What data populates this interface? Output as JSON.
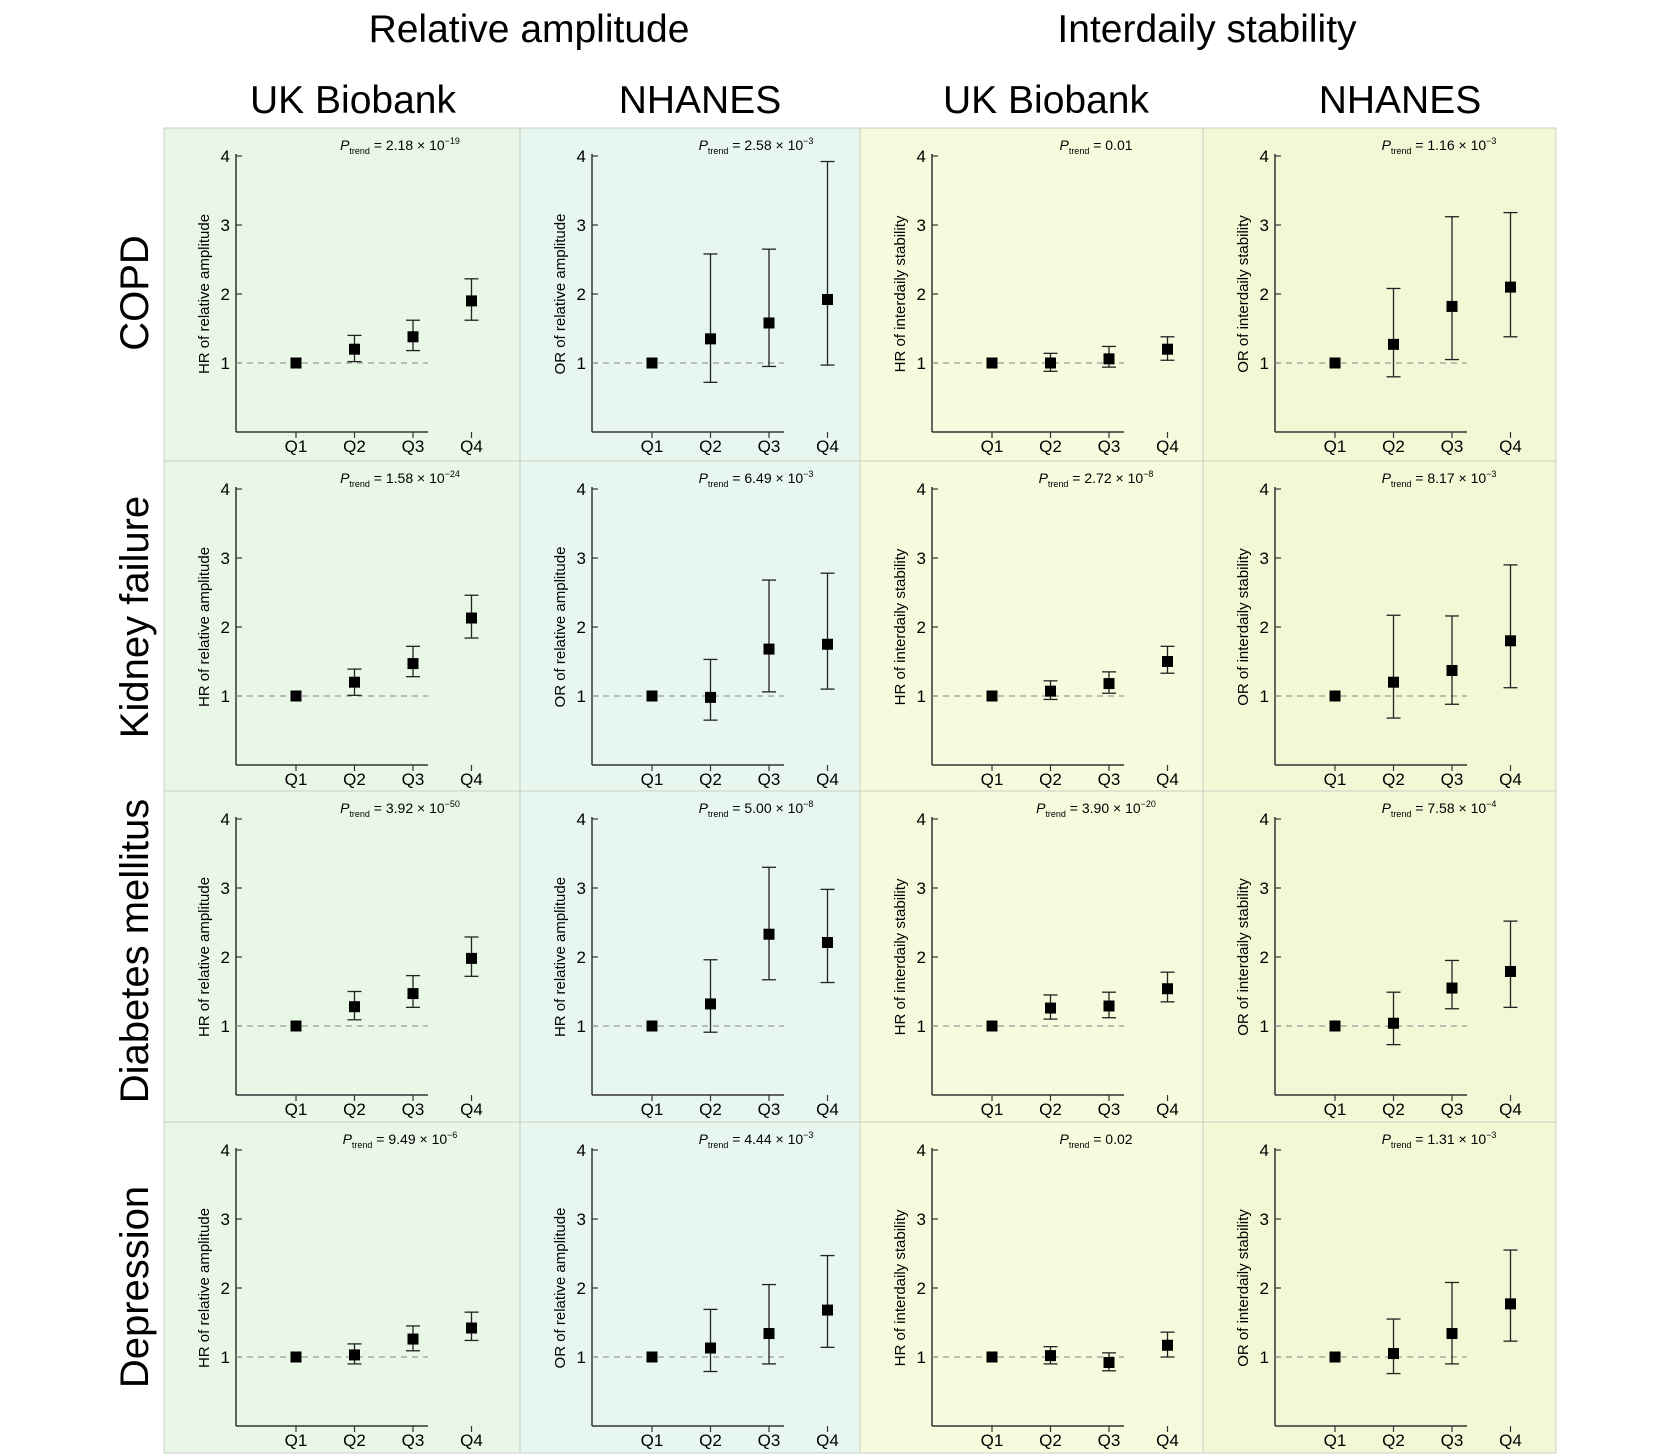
{
  "figure": {
    "column_groups": [
      "Relative amplitude",
      "Interdaily stability"
    ],
    "cohorts": [
      "UK Biobank",
      "NHANES",
      "UK Biobank",
      "NHANES"
    ],
    "row_labels": [
      "COPD",
      "Kidney failure",
      "Diabetes mellitus",
      "Depression"
    ],
    "panel_colors": [
      "#e9f7e7",
      "#e7f7ef",
      "#f6fbdd",
      "#f4f7d6"
    ],
    "point_color": "#000000",
    "reference_line_color": "#9a9a9a"
  },
  "chart_data": [
    {
      "type": "scatter",
      "row": "COPD",
      "column_group": "Relative amplitude",
      "cohort": "UK Biobank",
      "ylabel": "HR of relative amplitude",
      "categories": [
        "Q1",
        "Q2",
        "Q3",
        "Q4"
      ],
      "values": [
        1.0,
        1.2,
        1.38,
        1.9
      ],
      "ci_low": [
        1.0,
        1.02,
        1.18,
        1.62
      ],
      "ci_high": [
        1.0,
        1.4,
        1.62,
        2.22
      ],
      "p_trend": {
        "mantissa": "2.18",
        "exponent": "−19"
      },
      "yticks": [
        1,
        2,
        3,
        4
      ],
      "ylim": [
        0,
        4
      ],
      "reference_y": 1
    },
    {
      "type": "scatter",
      "row": "COPD",
      "column_group": "Relative amplitude",
      "cohort": "NHANES",
      "ylabel": "OR of relative amplitude",
      "categories": [
        "Q1",
        "Q2",
        "Q3",
        "Q4"
      ],
      "values": [
        1.0,
        1.35,
        1.58,
        1.92
      ],
      "ci_low": [
        1.0,
        0.72,
        0.95,
        0.97
      ],
      "ci_high": [
        1.0,
        2.58,
        2.65,
        3.92
      ],
      "p_trend": {
        "mantissa": "2.58",
        "exponent": "−3"
      },
      "yticks": [
        1,
        2,
        3,
        4
      ],
      "ylim": [
        0,
        4
      ],
      "reference_y": 1
    },
    {
      "type": "scatter",
      "row": "COPD",
      "column_group": "Interdaily stability",
      "cohort": "UK Biobank",
      "ylabel": "HR of interdaily stability",
      "categories": [
        "Q1",
        "Q2",
        "Q3",
        "Q4"
      ],
      "values": [
        1.0,
        1.0,
        1.06,
        1.2
      ],
      "ci_low": [
        1.0,
        0.88,
        0.94,
        1.04
      ],
      "ci_high": [
        1.0,
        1.14,
        1.24,
        1.38
      ],
      "p_trend": {
        "mantissa": "0.01",
        "exponent": ""
      },
      "yticks": [
        1,
        2,
        3,
        4
      ],
      "ylim": [
        0,
        4
      ],
      "reference_y": 1
    },
    {
      "type": "scatter",
      "row": "COPD",
      "column_group": "Interdaily stability",
      "cohort": "NHANES",
      "ylabel": "OR of interdaily stability",
      "categories": [
        "Q1",
        "Q2",
        "Q3",
        "Q4"
      ],
      "values": [
        1.0,
        1.27,
        1.82,
        2.1
      ],
      "ci_low": [
        1.0,
        0.8,
        1.05,
        1.38
      ],
      "ci_high": [
        1.0,
        2.08,
        3.12,
        3.18
      ],
      "p_trend": {
        "mantissa": "1.16",
        "exponent": "−3"
      },
      "yticks": [
        1,
        2,
        3,
        4
      ],
      "ylim": [
        0,
        4
      ],
      "reference_y": 1
    },
    {
      "type": "scatter",
      "row": "Kidney failure",
      "column_group": "Relative amplitude",
      "cohort": "UK Biobank",
      "ylabel": "HR of relative amplitude",
      "categories": [
        "Q1",
        "Q2",
        "Q3",
        "Q4"
      ],
      "values": [
        1.0,
        1.2,
        1.47,
        2.13
      ],
      "ci_low": [
        1.0,
        1.01,
        1.28,
        1.84
      ],
      "ci_high": [
        1.0,
        1.39,
        1.72,
        2.46
      ],
      "p_trend": {
        "mantissa": "1.58",
        "exponent": "−24"
      },
      "yticks": [
        1,
        2,
        3,
        4
      ],
      "ylim": [
        0,
        4
      ],
      "reference_y": 1
    },
    {
      "type": "scatter",
      "row": "Kidney failure",
      "column_group": "Relative amplitude",
      "cohort": "NHANES",
      "ylabel": "OR of relative amplitude",
      "categories": [
        "Q1",
        "Q2",
        "Q3",
        "Q4"
      ],
      "values": [
        1.0,
        0.98,
        1.68,
        1.75
      ],
      "ci_low": [
        1.0,
        0.65,
        1.06,
        1.1
      ],
      "ci_high": [
        1.0,
        1.53,
        2.68,
        2.78
      ],
      "p_trend": {
        "mantissa": "6.49",
        "exponent": "−3"
      },
      "yticks": [
        1,
        2,
        3,
        4
      ],
      "ylim": [
        0,
        4
      ],
      "reference_y": 1
    },
    {
      "type": "scatter",
      "row": "Kidney failure",
      "column_group": "Interdaily stability",
      "cohort": "UK Biobank",
      "ylabel": "HR of interdaily stability",
      "categories": [
        "Q1",
        "Q2",
        "Q3",
        "Q4"
      ],
      "values": [
        1.0,
        1.07,
        1.18,
        1.5
      ],
      "ci_low": [
        1.0,
        0.95,
        1.04,
        1.33
      ],
      "ci_high": [
        1.0,
        1.22,
        1.35,
        1.72
      ],
      "p_trend": {
        "mantissa": "2.72",
        "exponent": "−8"
      },
      "yticks": [
        1,
        2,
        3,
        4
      ],
      "ylim": [
        0,
        4
      ],
      "reference_y": 1
    },
    {
      "type": "scatter",
      "row": "Kidney failure",
      "column_group": "Interdaily stability",
      "cohort": "NHANES",
      "ylabel": "OR of interdaily stability",
      "categories": [
        "Q1",
        "Q2",
        "Q3",
        "Q4"
      ],
      "values": [
        1.0,
        1.2,
        1.37,
        1.8
      ],
      "ci_low": [
        1.0,
        0.68,
        0.88,
        1.12
      ],
      "ci_high": [
        1.0,
        2.17,
        2.16,
        2.9
      ],
      "p_trend": {
        "mantissa": "8.17",
        "exponent": "−3"
      },
      "yticks": [
        1,
        2,
        3,
        4
      ],
      "ylim": [
        0,
        4
      ],
      "reference_y": 1
    },
    {
      "type": "scatter",
      "row": "Diabetes mellitus",
      "column_group": "Relative amplitude",
      "cohort": "UK Biobank",
      "ylabel": "HR of relative amplitude",
      "categories": [
        "Q1",
        "Q2",
        "Q3",
        "Q4"
      ],
      "values": [
        1.0,
        1.28,
        1.47,
        1.98
      ],
      "ci_low": [
        1.0,
        1.09,
        1.27,
        1.72
      ],
      "ci_high": [
        1.0,
        1.5,
        1.73,
        2.29
      ],
      "p_trend": {
        "mantissa": "3.92",
        "exponent": "−50"
      },
      "yticks": [
        1,
        2,
        3,
        4
      ],
      "ylim": [
        0,
        4
      ],
      "reference_y": 1
    },
    {
      "type": "scatter",
      "row": "Diabetes mellitus",
      "column_group": "Relative amplitude",
      "cohort": "NHANES",
      "ylabel": "HR of relative amplitude",
      "categories": [
        "Q1",
        "Q2",
        "Q3",
        "Q4"
      ],
      "values": [
        1.0,
        1.32,
        2.33,
        2.21
      ],
      "ci_low": [
        1.0,
        0.91,
        1.67,
        1.63
      ],
      "ci_high": [
        1.0,
        1.96,
        3.3,
        2.98
      ],
      "p_trend": {
        "mantissa": "5.00",
        "exponent": "−8"
      },
      "yticks": [
        1,
        2,
        3,
        4
      ],
      "ylim": [
        0,
        4
      ],
      "reference_y": 1
    },
    {
      "type": "scatter",
      "row": "Diabetes mellitus",
      "column_group": "Interdaily stability",
      "cohort": "UK Biobank",
      "ylabel": "HR of interdaily stability",
      "categories": [
        "Q1",
        "Q2",
        "Q3",
        "Q4"
      ],
      "values": [
        1.0,
        1.26,
        1.29,
        1.54
      ],
      "ci_low": [
        1.0,
        1.1,
        1.12,
        1.35
      ],
      "ci_high": [
        1.0,
        1.45,
        1.49,
        1.78
      ],
      "p_trend": {
        "mantissa": "3.90",
        "exponent": "−20"
      },
      "yticks": [
        1,
        2,
        3,
        4
      ],
      "ylim": [
        0,
        4
      ],
      "reference_y": 1
    },
    {
      "type": "scatter",
      "row": "Diabetes mellitus",
      "column_group": "Interdaily stability",
      "cohort": "NHANES",
      "ylabel": "OR of interdaily stability",
      "categories": [
        "Q1",
        "Q2",
        "Q3",
        "Q4"
      ],
      "values": [
        1.0,
        1.04,
        1.55,
        1.79
      ],
      "ci_low": [
        1.0,
        0.73,
        1.25,
        1.27
      ],
      "ci_high": [
        1.0,
        1.49,
        1.95,
        2.52
      ],
      "p_trend": {
        "mantissa": "7.58",
        "exponent": "−4"
      },
      "yticks": [
        1,
        2,
        3,
        4
      ],
      "ylim": [
        0,
        4
      ],
      "reference_y": 1
    },
    {
      "type": "scatter",
      "row": "Depression",
      "column_group": "Relative amplitude",
      "cohort": "UK Biobank",
      "ylabel": "HR of relative amplitude",
      "categories": [
        "Q1",
        "Q2",
        "Q3",
        "Q4"
      ],
      "values": [
        1.0,
        1.03,
        1.26,
        1.42
      ],
      "ci_low": [
        1.0,
        0.9,
        1.09,
        1.24
      ],
      "ci_high": [
        1.0,
        1.19,
        1.45,
        1.65
      ],
      "p_trend": {
        "mantissa": "9.49",
        "exponent": "−6"
      },
      "yticks": [
        1,
        2,
        3,
        4
      ],
      "ylim": [
        0,
        4
      ],
      "reference_y": 1
    },
    {
      "type": "scatter",
      "row": "Depression",
      "column_group": "Relative amplitude",
      "cohort": "NHANES",
      "ylabel": "OR of relative amplitude",
      "categories": [
        "Q1",
        "Q2",
        "Q3",
        "Q4"
      ],
      "values": [
        1.0,
        1.13,
        1.34,
        1.68
      ],
      "ci_low": [
        1.0,
        0.79,
        0.9,
        1.14
      ],
      "ci_high": [
        1.0,
        1.69,
        2.05,
        2.47
      ],
      "p_trend": {
        "mantissa": "4.44",
        "exponent": "−3"
      },
      "yticks": [
        1,
        2,
        3,
        4
      ],
      "ylim": [
        0,
        4
      ],
      "reference_y": 1
    },
    {
      "type": "scatter",
      "row": "Depression",
      "column_group": "Interdaily stability",
      "cohort": "UK Biobank",
      "ylabel": "HR of interdaily stability",
      "categories": [
        "Q1",
        "Q2",
        "Q3",
        "Q4"
      ],
      "values": [
        1.0,
        1.02,
        0.92,
        1.17
      ],
      "ci_low": [
        1.0,
        0.9,
        0.8,
        1.0
      ],
      "ci_high": [
        1.0,
        1.15,
        1.06,
        1.36
      ],
      "p_trend": {
        "mantissa": "0.02",
        "exponent": ""
      },
      "yticks": [
        1,
        2,
        3,
        4
      ],
      "ylim": [
        0,
        4
      ],
      "reference_y": 1
    },
    {
      "type": "scatter",
      "row": "Depression",
      "column_group": "Interdaily stability",
      "cohort": "NHANES",
      "ylabel": "OR of interdaily stability",
      "categories": [
        "Q1",
        "Q2",
        "Q3",
        "Q4"
      ],
      "values": [
        1.0,
        1.05,
        1.34,
        1.77
      ],
      "ci_low": [
        1.0,
        0.76,
        0.9,
        1.23
      ],
      "ci_high": [
        1.0,
        1.55,
        2.08,
        2.55
      ],
      "p_trend": {
        "mantissa": "1.31",
        "exponent": "−3"
      },
      "yticks": [
        1,
        2,
        3,
        4
      ],
      "ylim": [
        0,
        4
      ],
      "reference_y": 1
    }
  ]
}
